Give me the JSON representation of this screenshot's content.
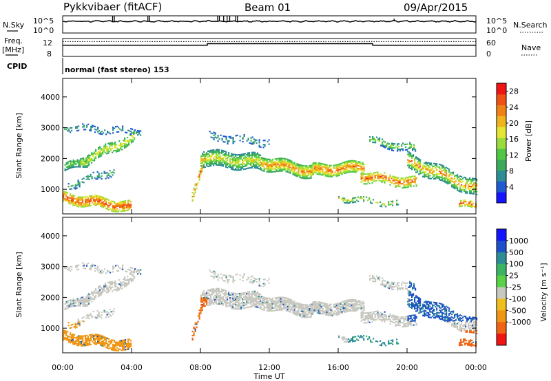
{
  "header": {
    "site": "Pykkvibaer (fitACF)",
    "beam": "Beam 01",
    "date": "09/Apr/2015"
  },
  "strip_labels": {
    "nsky": "N.Sky",
    "nsearch": "N.Search",
    "freq_line1": "Freq.",
    "freq_line2": "[MHz]",
    "nave": "Nave",
    "cpid": "CPID",
    "cpid_value": "normal (fast stereo) 153"
  },
  "colors": {
    "power": [
      "#1414ff",
      "#1e5ad2",
      "#2d8c96",
      "#3caa5a",
      "#50c846",
      "#9bdc3c",
      "#e6e632",
      "#f0b41e",
      "#f08214",
      "#f05014",
      "#f01414"
    ],
    "velocity": [
      "#1414ff",
      "#1e50c8",
      "#2d8c96",
      "#3cb464",
      "#5ad246",
      "#c8c8c0",
      "#f0be1e",
      "#f09614",
      "#f06414",
      "#f01414"
    ]
  },
  "chart_data": [
    {
      "type": "line",
      "panel": "noise",
      "ylabel_left": "N.Sky",
      "ylabel_right": "N.Search",
      "yticks_left": [
        "10^5",
        "10^0"
      ],
      "yticks_right": [
        "10^5",
        "10^0"
      ]
    },
    {
      "type": "line",
      "panel": "frequency-nave",
      "ylabel_left": "Freq. [MHz]",
      "ylabel_right": "Nave",
      "yticks_left": [
        "12",
        "8"
      ],
      "yticks_right": [
        "60",
        "0"
      ],
      "freq_steps": [
        {
          "x": 0.0,
          "y": 11.0
        },
        {
          "x": 8.4,
          "y": 11.7
        },
        {
          "x": 18.0,
          "y": 11.0
        },
        {
          "x": 24.0,
          "y": 11.0
        }
      ],
      "nave_level": 50
    },
    {
      "type": "heatmap",
      "panel": "power",
      "ylabel": "Slant Range [km]",
      "yticks": [
        1000,
        2000,
        3000,
        4000
      ],
      "ylim": [
        200,
        4600
      ],
      "colorbar_label": "Power [dB]",
      "colorbar_ticks": [
        4,
        8,
        12,
        16,
        20,
        24,
        28
      ],
      "colorbar_range": [
        0,
        30
      ]
    },
    {
      "type": "heatmap",
      "panel": "velocity",
      "ylabel": "Slant Range [km]",
      "yticks": [
        1000,
        2000,
        3000,
        4000
      ],
      "ylim": [
        200,
        4600
      ],
      "colorbar_label": "Velocity [m s⁻¹]",
      "colorbar_ticks": [
        1000,
        500,
        100,
        25,
        -25,
        -100,
        -500,
        -1000
      ],
      "xlabel": "Time UT",
      "xticks": [
        "00:00",
        "04:00",
        "08:00",
        "12:00",
        "16:00",
        "20:00",
        "00:00"
      ],
      "xlim": [
        0,
        24
      ]
    }
  ]
}
